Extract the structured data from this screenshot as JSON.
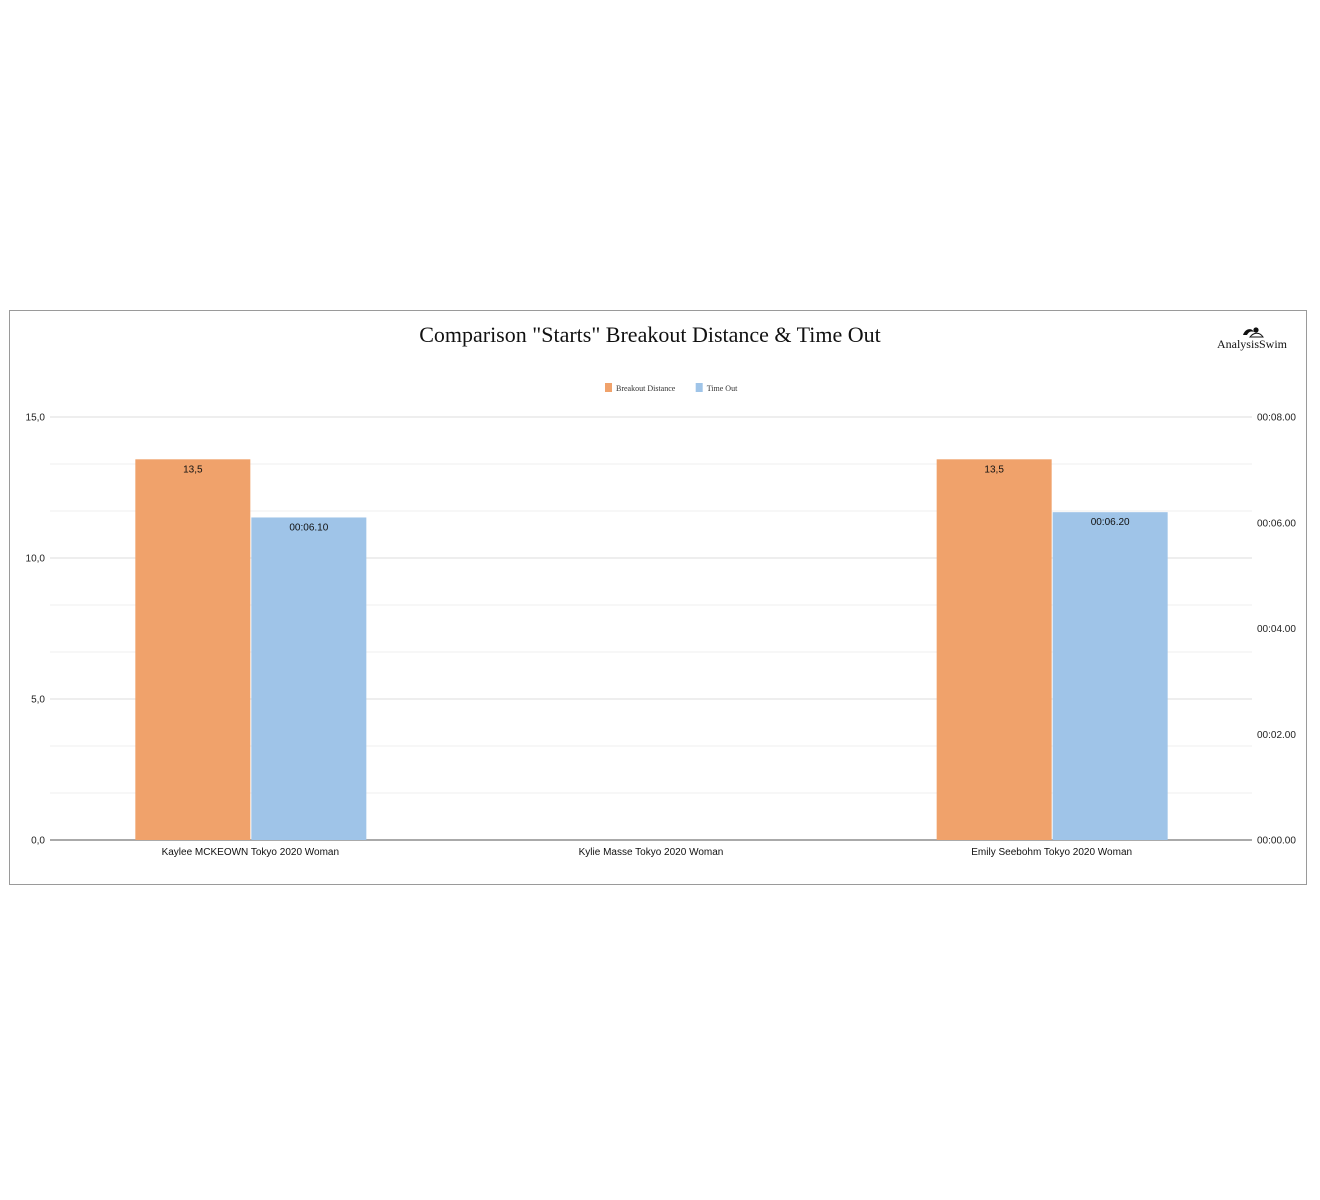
{
  "logo": {
    "text": "AnalysisSwim",
    "icon": "swimmer-logo-icon"
  },
  "chart_data": {
    "type": "bar",
    "title": "Comparison \"Starts\" Breakout Distance & Time Out",
    "categories": [
      "Kaylee MCKEOWN Tokyo 2020 Woman",
      "Kylie Masse Tokyo 2020 Woman",
      "Emily Seebohm Tokyo 2020 Woman"
    ],
    "series": [
      {
        "name": "Breakout Distance",
        "axis": "left",
        "color": "#f0a26b",
        "values": [
          13.5,
          null,
          13.5
        ],
        "labels": [
          "13,5",
          "",
          "13,5"
        ]
      },
      {
        "name": "Time Out",
        "axis": "right",
        "color": "#9fc4e8",
        "values": [
          6.1,
          null,
          6.2
        ],
        "labels": [
          "00:06.10",
          "",
          "00:06.20"
        ]
      }
    ],
    "ylim_left": [
      0,
      15
    ],
    "yticks_left": [
      "0,0",
      "5,0",
      "10,0",
      "15,0"
    ],
    "ylim_right": [
      0,
      8
    ],
    "yticks_right": [
      "00:00.00",
      "00:02.00",
      "00:04.00",
      "00:06.00",
      "00:08.00"
    ],
    "grid": true,
    "legend": "top-center"
  }
}
